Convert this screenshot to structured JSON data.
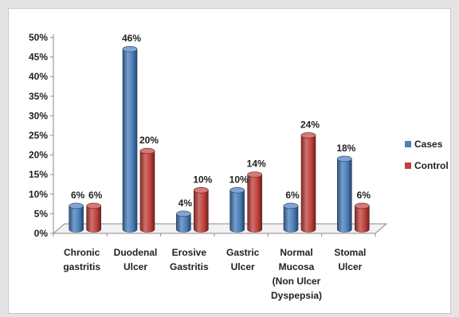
{
  "chart_data": {
    "type": "bar",
    "style": "3d-cylinder",
    "categories": [
      [
        "Chronic",
        "gastritis"
      ],
      [
        "Duodenal",
        "Ulcer"
      ],
      [
        "Erosive",
        "Gastritis"
      ],
      [
        "Gastric",
        "Ulcer"
      ],
      [
        "Normal",
        "Mucosa",
        "(Non Ulcer",
        "Dyspepsia)"
      ],
      [
        "Stomal",
        "Ulcer"
      ]
    ],
    "series": [
      {
        "name": "Cases",
        "values": [
          6,
          46,
          4,
          10,
          6,
          18
        ],
        "color": "#4a7ebb"
      },
      {
        "name": "Control",
        "values": [
          6,
          20,
          10,
          14,
          24,
          6
        ],
        "color": "#c0403b"
      }
    ],
    "value_suffix": "%",
    "yticks": [
      0,
      5,
      10,
      15,
      20,
      25,
      30,
      35,
      40,
      45,
      50
    ],
    "ylim": [
      0,
      50
    ],
    "grid": false,
    "legend_position": "right"
  }
}
